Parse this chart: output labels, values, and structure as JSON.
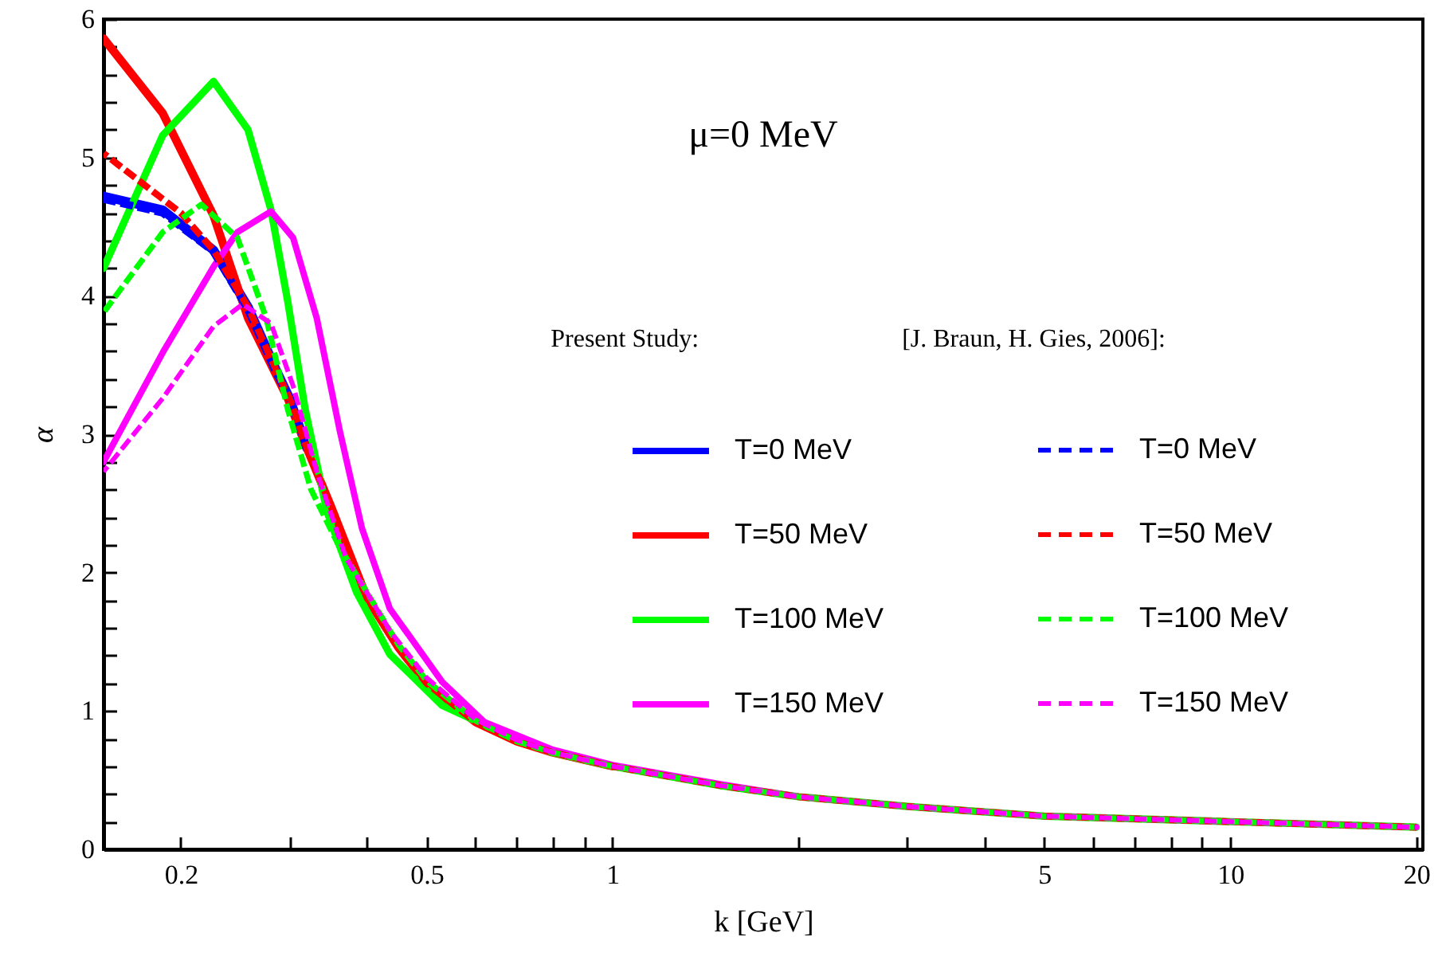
{
  "chart_data": {
    "type": "line",
    "xlabel": "k [GeV]",
    "ylabel": "α",
    "log": "x",
    "grid": false,
    "legend": "right",
    "xlim": [
      0.15,
      20.5
    ],
    "ylim": [
      0,
      6
    ],
    "xticks": [
      0.2,
      {
        "value": 0.3,
        "label": null
      },
      {
        "value": 0.4,
        "label": null
      },
      0.5,
      {
        "value": 0.6,
        "label": null
      },
      {
        "value": 0.7,
        "label": null
      },
      {
        "value": 0.8,
        "label": null
      },
      {
        "value": 0.9,
        "label": null
      },
      1,
      {
        "value": 2,
        "label": null
      },
      {
        "value": 3,
        "label": null
      },
      {
        "value": 4,
        "label": null
      },
      5,
      {
        "value": 6,
        "label": null
      },
      {
        "value": 7,
        "label": null
      },
      {
        "value": 8,
        "label": null
      },
      {
        "value": 9,
        "label": null
      },
      10,
      20
    ],
    "yticks": [
      0,
      {
        "value": 0.2,
        "label": null
      },
      {
        "value": 0.4,
        "label": null
      },
      {
        "value": 0.6,
        "label": null
      },
      {
        "value": 0.8,
        "label": null
      },
      1,
      {
        "value": 1.2,
        "label": null
      },
      {
        "value": 1.4,
        "label": null
      },
      {
        "value": 1.6,
        "label": null
      },
      {
        "value": 1.8,
        "label": null
      },
      2,
      {
        "value": 2.2,
        "label": null
      },
      {
        "value": 2.4,
        "label": null
      },
      {
        "value": 2.6,
        "label": null
      },
      {
        "value": 2.8,
        "label": null
      },
      3,
      {
        "value": 3.2,
        "label": null
      },
      {
        "value": 3.4,
        "label": null
      },
      {
        "value": 3.6,
        "label": null
      },
      {
        "value": 3.8,
        "label": null
      },
      4,
      {
        "value": 4.2,
        "label": null
      },
      {
        "value": 4.4,
        "label": null
      },
      {
        "value": 4.6,
        "label": null
      },
      {
        "value": 4.8,
        "label": null
      },
      5,
      {
        "value": 5.2,
        "label": null
      },
      {
        "value": 5.4,
        "label": null
      },
      {
        "value": 5.6,
        "label": null
      },
      {
        "value": 5.8,
        "label": null
      },
      6
    ],
    "annotations": [
      "μ=0 MeV",
      "Present Study:",
      "[J. Braun, H. Gies, 2006]:"
    ],
    "series": [
      {
        "name": "T=0 MeV",
        "color": "#0000ff",
        "line_style": "solid",
        "x": [
          0.15,
          0.187,
          0.226,
          0.257,
          0.285,
          0.3,
          0.32
        ],
        "values": [
          4.72,
          4.62,
          4.33,
          3.92,
          3.47,
          3.26,
          2.9
        ]
      },
      {
        "name": "T=50 MeV",
        "color": "#ff0000",
        "line_style": "solid",
        "x": [
          0.15,
          0.187,
          0.226,
          0.257,
          0.298,
          0.32,
          0.35,
          0.4,
          0.45,
          0.5,
          0.6,
          0.7,
          0.8,
          1
        ],
        "values": [
          5.86,
          5.32,
          4.58,
          3.84,
          3.26,
          2.9,
          2.48,
          1.82,
          1.46,
          1.2,
          0.92,
          0.78,
          0.7,
          0.6
        ]
      },
      {
        "name": "T=100 MeV",
        "color": "#00ff00",
        "line_style": "solid",
        "x": [
          0.15,
          0.187,
          0.226,
          0.257,
          0.28,
          0.298,
          0.318,
          0.345,
          0.385,
          0.436,
          0.53,
          0.6,
          0.7,
          0.8,
          1,
          1.5,
          2,
          3,
          5,
          10,
          20
        ],
        "values": [
          4.2,
          5.16,
          5.55,
          5.2,
          4.62,
          3.96,
          3.18,
          2.44,
          1.86,
          1.41,
          1.04,
          0.93,
          0.79,
          0.7,
          0.6,
          0.46,
          0.38,
          0.31,
          0.24,
          0.2,
          0.16
        ]
      },
      {
        "name": "T=150 MeV",
        "color": "#ff00ff",
        "line_style": "solid",
        "x": [
          0.15,
          0.187,
          0.226,
          0.247,
          0.28,
          0.304,
          0.332,
          0.362,
          0.393,
          0.436,
          0.53,
          0.62,
          0.8,
          1,
          1.5,
          2,
          3,
          5,
          10,
          20
        ],
        "values": [
          2.8,
          3.59,
          4.21,
          4.46,
          4.61,
          4.42,
          3.84,
          3.02,
          2.32,
          1.74,
          1.21,
          0.92,
          0.72,
          0.61,
          0.47,
          0.38,
          0.31,
          0.24,
          0.2,
          0.16
        ]
      },
      {
        "name": "T=0 MeV",
        "color": "#0000ff",
        "line_style": "dashed",
        "x": [
          0.15,
          0.187,
          0.226,
          0.257,
          0.285,
          0.3,
          0.32
        ],
        "values": [
          4.7,
          4.6,
          4.32,
          3.9,
          3.45,
          3.26,
          2.9
        ]
      },
      {
        "name": "T=50 MeV",
        "color": "#ff0000",
        "line_style": "dashed",
        "x": [
          0.15,
          0.187,
          0.2,
          0.226,
          0.257,
          0.285,
          0.3,
          0.32,
          0.35,
          0.4,
          0.45,
          0.5,
          0.6,
          0.7,
          0.8,
          1,
          1.5,
          2,
          3,
          5,
          10,
          20
        ],
        "values": [
          5.03,
          4.7,
          4.6,
          4.33,
          3.92,
          3.47,
          3.26,
          2.9,
          2.48,
          1.82,
          1.46,
          1.2,
          0.92,
          0.78,
          0.7,
          0.6,
          0.46,
          0.38,
          0.31,
          0.24,
          0.2,
          0.16
        ]
      },
      {
        "name": "T=100 MeV",
        "color": "#00ff00",
        "line_style": "dashed",
        "x": [
          0.15,
          0.187,
          0.216,
          0.247,
          0.275,
          0.298,
          0.325,
          0.36,
          0.4,
          0.45,
          0.5,
          0.6,
          0.7,
          0.8,
          1,
          1.5,
          2,
          3,
          5,
          10,
          20
        ],
        "values": [
          3.88,
          4.46,
          4.66,
          4.42,
          3.84,
          3.18,
          2.6,
          2.2,
          1.86,
          1.48,
          1.22,
          0.93,
          0.78,
          0.7,
          0.6,
          0.46,
          0.38,
          0.31,
          0.24,
          0.2,
          0.16
        ]
      },
      {
        "name": "T=150 MeV",
        "color": "#ff00ff",
        "line_style": "dashed",
        "x": [
          0.15,
          0.187,
          0.226,
          0.252,
          0.28,
          0.304,
          0.332,
          0.37,
          0.436,
          0.5,
          0.6,
          0.7,
          0.8,
          1,
          1.5,
          2,
          3,
          5,
          10,
          20
        ],
        "values": [
          2.73,
          3.26,
          3.78,
          3.94,
          3.8,
          3.35,
          2.73,
          2.11,
          1.58,
          1.24,
          0.94,
          0.79,
          0.7,
          0.6,
          0.46,
          0.38,
          0.31,
          0.24,
          0.2,
          0.16
        ]
      }
    ]
  }
}
